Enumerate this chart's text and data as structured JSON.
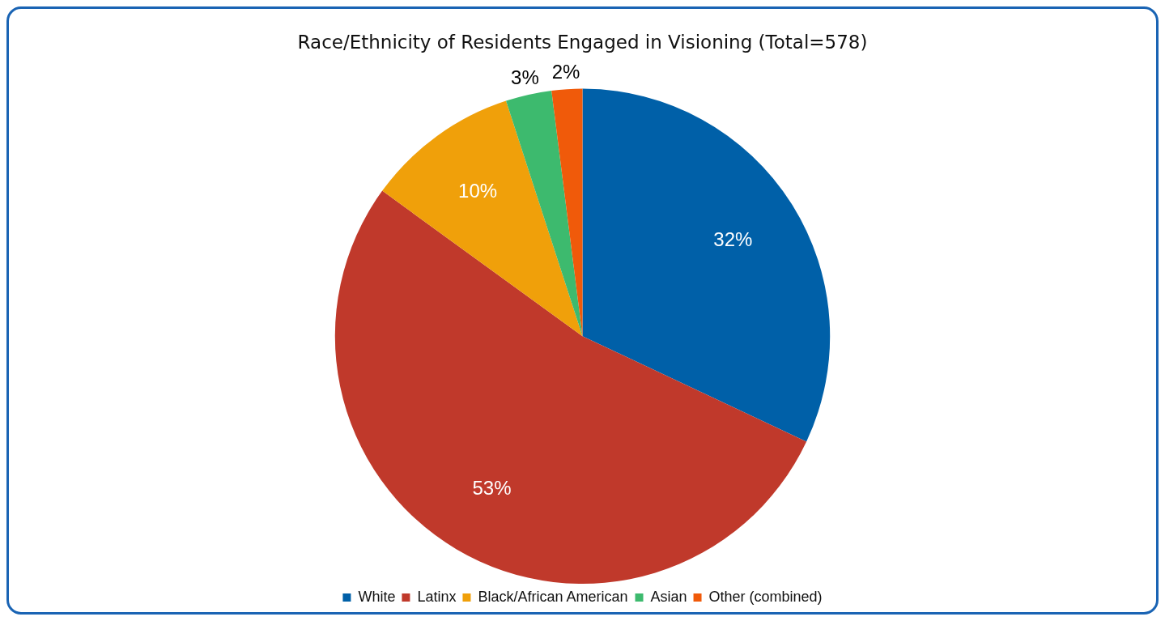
{
  "chart_data": {
    "type": "pie",
    "title": "Race/Ethnicity of Residents Engaged in Visioning (Total=578)",
    "categories": [
      "White",
      "Latinx",
      "Black/African American",
      "Asian",
      "Other (combined)"
    ],
    "values": [
      32,
      53,
      10,
      3,
      2
    ],
    "colors": [
      "#0060a8",
      "#c0392b",
      "#f0a00a",
      "#3dba6e",
      "#f05a0a"
    ],
    "value_labels": [
      "32%",
      "53%",
      "10%",
      "3%",
      "2%"
    ],
    "legend": "bottom"
  }
}
